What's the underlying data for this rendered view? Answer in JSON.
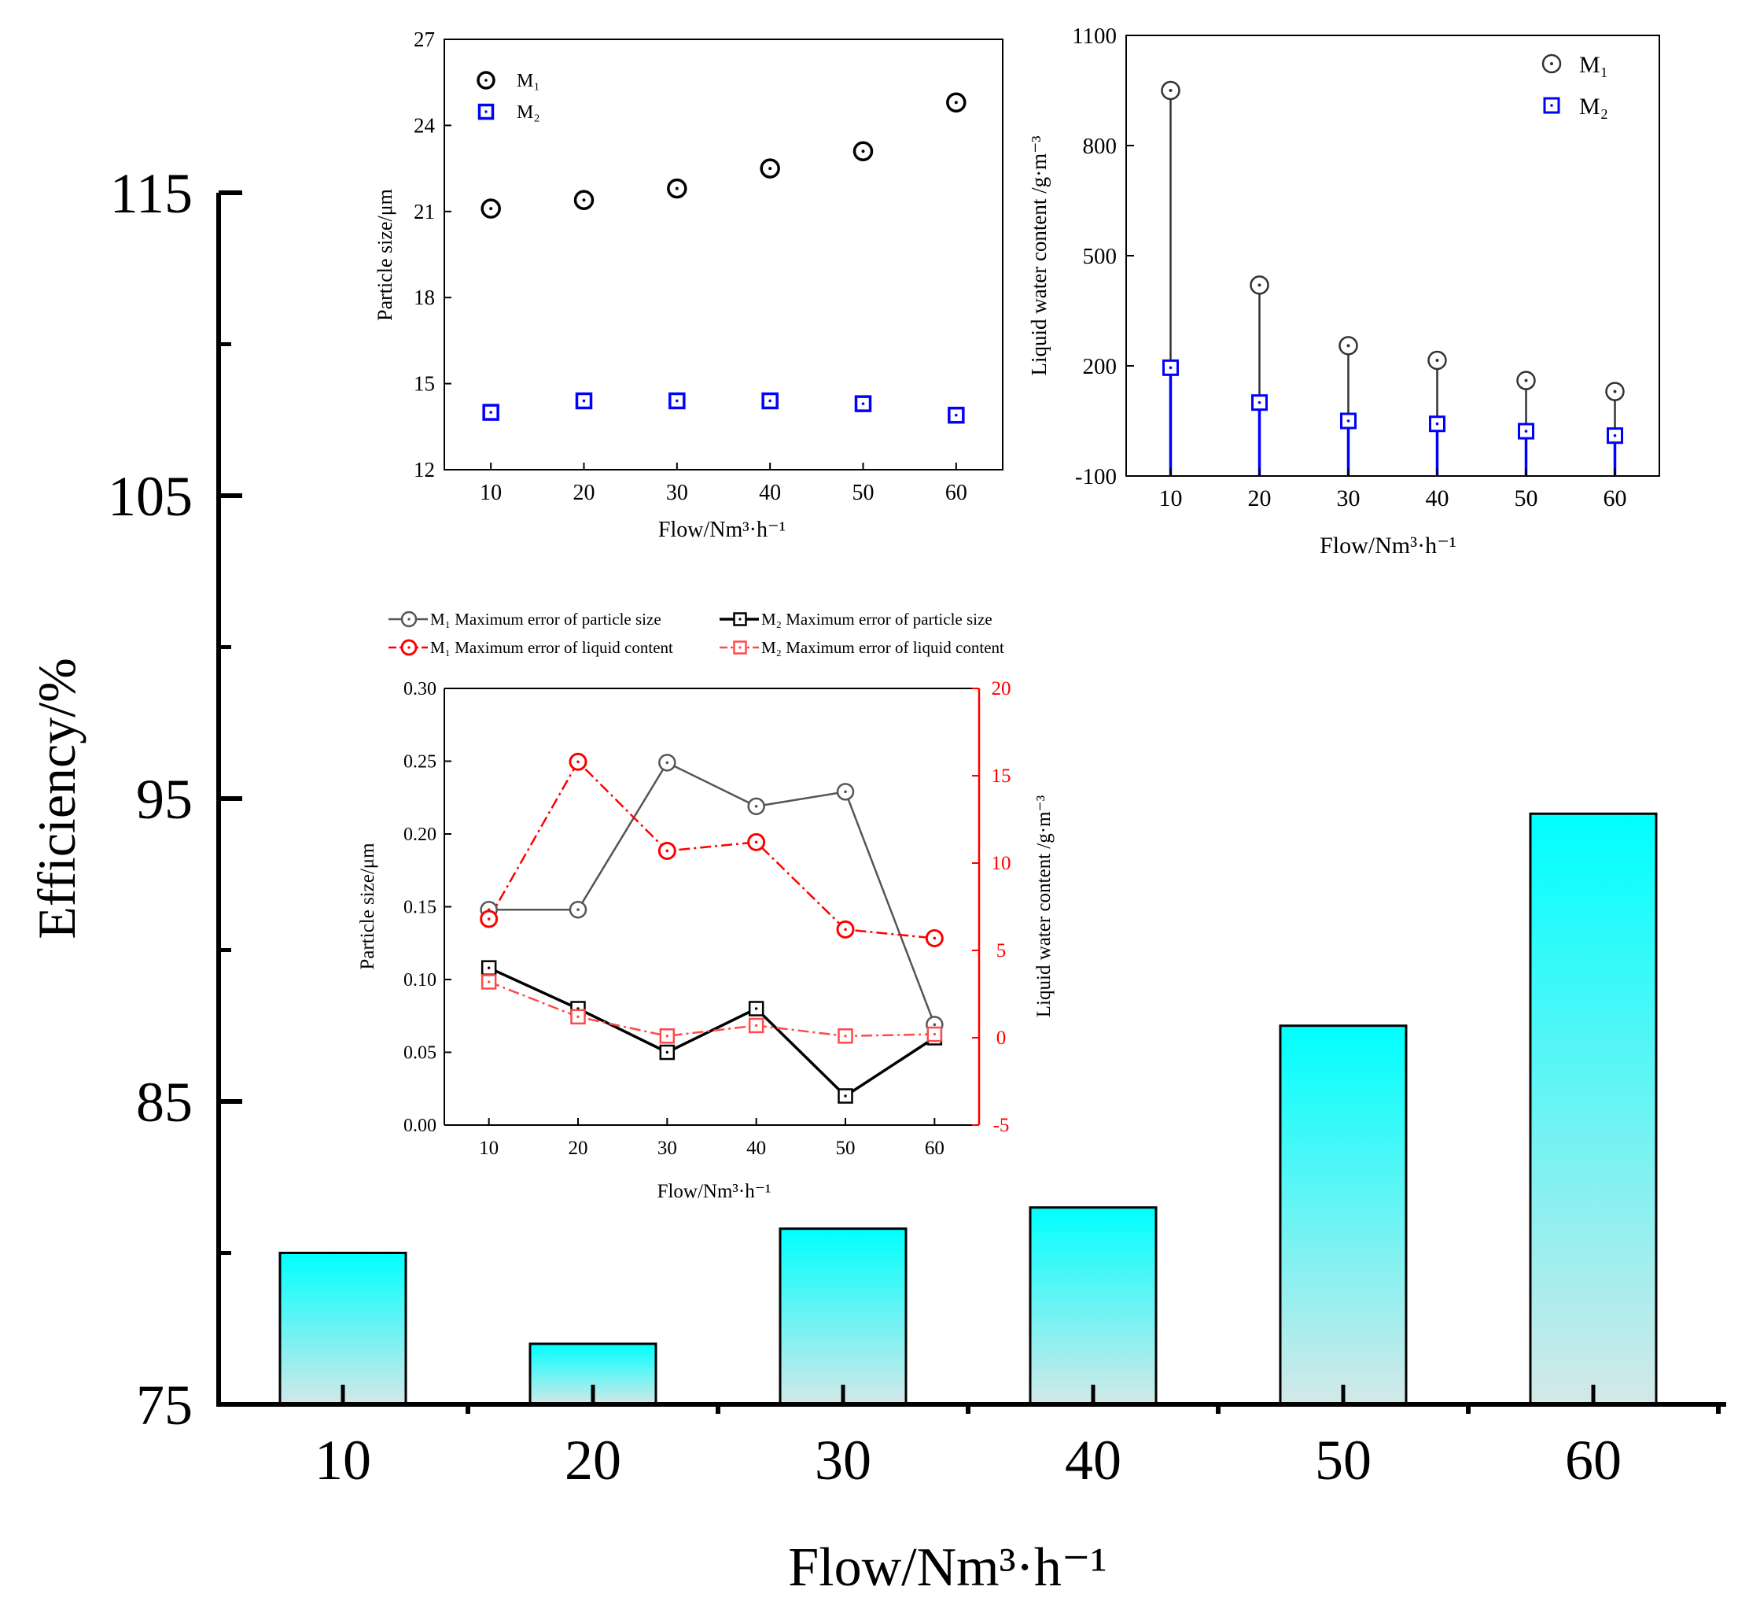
{
  "colors": {
    "bar_top": "#00ffff",
    "bar_bottom": "#d4e8e8",
    "m1": "#000000",
    "m2": "#0000ff",
    "m1_error": "#555555",
    "red": "#ff0000",
    "red_light": "#ff4a4a"
  },
  "chart_data": [
    {
      "id": "main",
      "type": "bar",
      "categories": [
        "10",
        "20",
        "30",
        "40",
        "50",
        "60"
      ],
      "values": [
        80.0,
        77.0,
        80.8,
        81.5,
        87.5,
        94.5
      ],
      "ylabel": "Efficiency/%",
      "xlabel": "Flow/Nm³·h⁻¹",
      "ylim": [
        75,
        115
      ],
      "yticks": [
        "75",
        "85",
        "95",
        "105",
        "115"
      ]
    },
    {
      "id": "inset_particle",
      "type": "scatter",
      "x": [
        10,
        20,
        30,
        40,
        50,
        60
      ],
      "xticks": [
        "10",
        "20",
        "30",
        "40",
        "50",
        "60"
      ],
      "xlim": [
        5,
        65
      ],
      "ylim": [
        12,
        27
      ],
      "yticks": [
        "12",
        "15",
        "18",
        "21",
        "24",
        "27"
      ],
      "ylabel": "Particle size/μm",
      "xlabel": "Flow/Nm³·h⁻¹",
      "series": [
        {
          "name": "M₁",
          "values": [
            21.1,
            21.4,
            21.8,
            22.5,
            23.1,
            24.8
          ]
        },
        {
          "name": "M₂",
          "values": [
            14.0,
            14.4,
            14.4,
            14.4,
            14.3,
            13.9
          ]
        }
      ],
      "legend": {
        "m1": "M₁",
        "m2": "M₂"
      }
    },
    {
      "id": "inset_liquid",
      "type": "scatter",
      "x": [
        10,
        20,
        30,
        40,
        50,
        60
      ],
      "xticks": [
        "10",
        "20",
        "30",
        "40",
        "50",
        "60"
      ],
      "xlim": [
        5,
        65
      ],
      "ylim": [
        -100,
        1100
      ],
      "yticks": [
        "-100",
        "200",
        "500",
        "800",
        "1100"
      ],
      "ylabel": "Liquid water content /g·m⁻³",
      "xlabel": "Flow/Nm³·h⁻¹",
      "series": [
        {
          "name": "M₁",
          "values": [
            950,
            420,
            255,
            215,
            160,
            130
          ]
        },
        {
          "name": "M₂",
          "values": [
            195,
            100,
            50,
            42,
            22,
            10
          ]
        }
      ],
      "legend": {
        "m1": "M₁",
        "m2": "M₂"
      }
    },
    {
      "id": "inset_error",
      "type": "line",
      "x": [
        10,
        20,
        30,
        40,
        50,
        60
      ],
      "xticks": [
        "10",
        "20",
        "30",
        "40",
        "50",
        "60"
      ],
      "xlim": [
        5,
        65
      ],
      "ylim": [
        0,
        0.3
      ],
      "yticks": [
        "0.00",
        "0.05",
        "0.10",
        "0.15",
        "0.20",
        "0.25",
        "0.30"
      ],
      "y2lim": [
        -5,
        20
      ],
      "y2ticks": [
        "-5",
        "0",
        "5",
        "10",
        "15",
        "20"
      ],
      "ylabel": "Particle size/μm",
      "y2label": "Liquid water content /g·m⁻³",
      "xlabel": "Flow/Nm³·h⁻¹",
      "series": [
        {
          "name": "M₁ Maximum error of particle size",
          "axis": "left",
          "values": [
            0.148,
            0.148,
            0.249,
            0.219,
            0.229,
            0.069
          ]
        },
        {
          "name": "M₂ Maximum error of particle size",
          "axis": "left",
          "values": [
            0.108,
            0.08,
            0.05,
            0.08,
            0.02,
            0.06
          ]
        },
        {
          "name": "M₁ Maximum error of liquid content",
          "axis": "right",
          "values": [
            6.8,
            15.8,
            10.7,
            11.2,
            6.2,
            5.7
          ]
        },
        {
          "name": "M₂ Maximum error of liquid content",
          "axis": "right",
          "values": [
            3.2,
            1.2,
            0.1,
            0.7,
            0.1,
            0.2
          ]
        }
      ],
      "legend": {
        "m1_size": "M₁ Maximum error of particle size",
        "m2_size": "M₂ Maximum error of particle size",
        "m1_liquid": "M₁ Maximum error of liquid content",
        "m2_liquid": "M₂ Maximum error of liquid content"
      }
    }
  ]
}
